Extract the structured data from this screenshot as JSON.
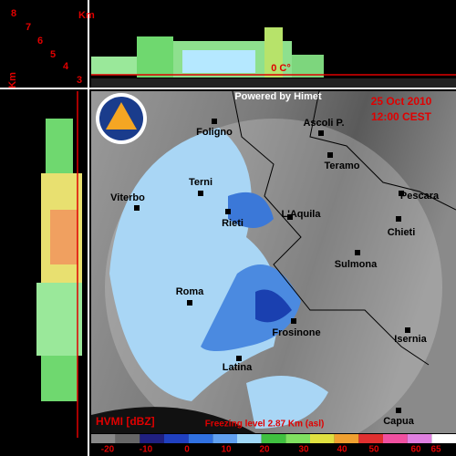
{
  "header": {
    "powered_by": "Powered by Himet",
    "date": "25 Oct 2010",
    "time": "12:00 CEST"
  },
  "height_axis": {
    "unit": "Km",
    "unit_rotated": "Km",
    "labels": [
      "8",
      "7",
      "6",
      "5",
      "4",
      "3"
    ],
    "freezing_mark": "0 C°"
  },
  "cities": [
    "Foligno",
    "Ascoli P.",
    "Teramo",
    "Terni",
    "Pescara",
    "Viterbo",
    "L'Aquila",
    "Rieti",
    "Chieti",
    "Sulmona",
    "Roma",
    "Frosinone",
    "Isernia",
    "Latina",
    "Capua"
  ],
  "footer": {
    "product": "HVMI [dBZ]",
    "freezing_level": "Freezing level  2.87 Km (asl)"
  },
  "legend": {
    "ticks": [
      "-20",
      "-10",
      "0",
      "10",
      "20",
      "30",
      "40",
      "50",
      "60",
      "65"
    ]
  }
}
